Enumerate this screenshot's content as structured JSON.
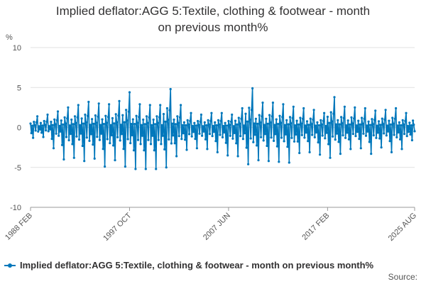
{
  "chart_data": {
    "type": "line",
    "title_lines": [
      "Implied deflator:AGG 5:Textile, clothing & footwear - month",
      "on previous month%"
    ],
    "ylabel": "%",
    "ylim": [
      -10,
      10
    ],
    "yticks": [
      10,
      5,
      0,
      -5,
      -10
    ],
    "x_range": [
      "1988 FEB",
      "2025 AUG"
    ],
    "xtick_labels": [
      "1988 FEB",
      "1997 OCT",
      "2007 JUN",
      "2017 FEB",
      "2025 AUG"
    ],
    "grid": true,
    "legend_position": "bottom-left",
    "color": "#0077bb",
    "series": [
      {
        "name": "Implied deflator:AGG 5:Textile, clothing & footwear - month on previous month%",
        "pattern_note": "monthly values; recurring seasonal cycle, peaks and troughs estimated from gridlines",
        "start": "1988 FEB",
        "end": "2025 AUG",
        "annual_highs": [
          1.4,
          1.6,
          2.0,
          2.5,
          2.8,
          3.2,
          3.0,
          2.9,
          3.3,
          4.4,
          2.9,
          2.8,
          2.8,
          4.8,
          2.8,
          1.8,
          1.6,
          1.8,
          1.8,
          1.6,
          2.4,
          4.9,
          3.1,
          3.1,
          2.9,
          2.6,
          2.4,
          2.2,
          1.8,
          3.8,
          2.6,
          2.5,
          2.4,
          2.1,
          2.2,
          2.4,
          1.8,
          1.7
        ],
        "annual_lows": [
          -1.3,
          -1.2,
          -2.6,
          -4.0,
          -3.8,
          -4.2,
          -3.9,
          -4.9,
          -4.1,
          -4.9,
          -5.2,
          -5.2,
          -5.2,
          -5.0,
          -3.6,
          -2.8,
          -2.6,
          -2.7,
          -3.1,
          -3.5,
          -3.6,
          -4.6,
          -4.1,
          -4.2,
          -4.3,
          -4.4,
          -3.2,
          -3.1,
          -3.4,
          -3.8,
          -3.3,
          -2.7,
          -2.6,
          -3.3,
          -2.5,
          -3.1,
          -2.7,
          -1.6
        ]
      }
    ]
  },
  "source_label": "Source:"
}
